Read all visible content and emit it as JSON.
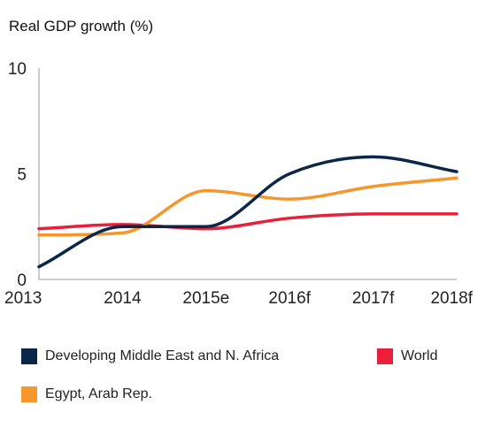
{
  "chart_data": {
    "type": "line",
    "title": "",
    "ylabel": "Real GDP growth (%)",
    "xlabel": "",
    "categories": [
      "2013",
      "2014",
      "2015e",
      "2016f",
      "2017f",
      "2018f"
    ],
    "ylim": [
      0,
      10
    ],
    "yticks": [
      "0",
      "5",
      "10"
    ],
    "grid": false,
    "legend_placement": "bottom",
    "series": [
      {
        "name": "Developing Middle East and N. Africa",
        "color": "#0b2648",
        "values": [
          0.6,
          2.5,
          2.5,
          5.0,
          5.8,
          5.1
        ]
      },
      {
        "name": "World",
        "color": "#e8203a",
        "values": [
          2.4,
          2.6,
          2.4,
          2.9,
          3.1,
          3.1
        ]
      },
      {
        "name": "Egypt, Arab Rep.",
        "color": "#f7962b",
        "values": [
          2.1,
          2.2,
          4.2,
          3.8,
          4.4,
          4.8
        ]
      }
    ]
  }
}
